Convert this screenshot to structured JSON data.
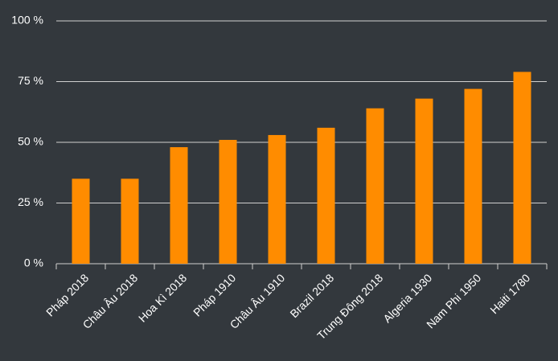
{
  "chart_data": {
    "type": "bar",
    "categories": [
      "Pháp 2018",
      "Châu Âu 2018",
      "Hoa Kì 2018",
      "Pháp 1910",
      "Châu Âu 1910",
      "Brazil 2018",
      "Trung Đông 2018",
      "Algeria 1930",
      "Nam Phi 1950",
      "Haiti 1780"
    ],
    "values": [
      35,
      35,
      48,
      51,
      53,
      56,
      64,
      68,
      72,
      79
    ],
    "color": "#ff8c00",
    "ylim": [
      0,
      100
    ],
    "yticks": [
      {
        "value": 0,
        "label": "0 %"
      },
      {
        "value": 25,
        "label": "25 %"
      },
      {
        "value": 50,
        "label": "50 %"
      },
      {
        "value": 75,
        "label": "75 %"
      },
      {
        "value": 100,
        "label": "100 %"
      }
    ],
    "grid": true
  }
}
